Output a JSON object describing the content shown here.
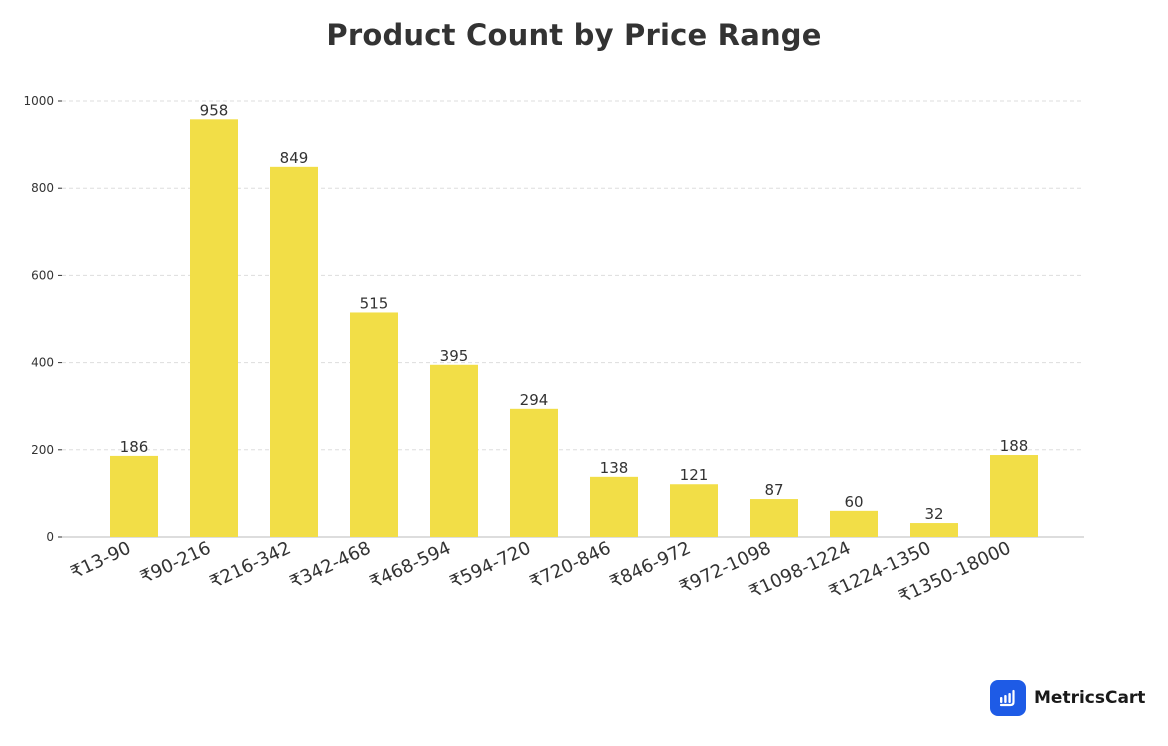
{
  "colors": {
    "bar": "#f2de47",
    "grid": "#dddddd",
    "axis": "#bbbbbb",
    "text": "#333333",
    "brand": "#1e5be6"
  },
  "brand": {
    "name": "MetricsCart",
    "icon": "bar-chart-icon"
  },
  "chart_data": {
    "type": "bar",
    "title": "Product Count by Price Range",
    "xlabel": "",
    "ylabel": "",
    "categories": [
      "₹13-90",
      "₹90-216",
      "₹216-342",
      "₹342-468",
      "₹468-594",
      "₹594-720",
      "₹720-846",
      "₹846-972",
      "₹972-1098",
      "₹1098-1224",
      "₹1224-1350",
      "₹1350-18000"
    ],
    "values": [
      186,
      958,
      849,
      515,
      395,
      294,
      138,
      121,
      87,
      60,
      32,
      188
    ],
    "ylim": [
      0,
      1000
    ],
    "yticks": [
      0,
      200,
      400,
      600,
      800,
      1000
    ],
    "grid": true,
    "data_labels": true
  }
}
